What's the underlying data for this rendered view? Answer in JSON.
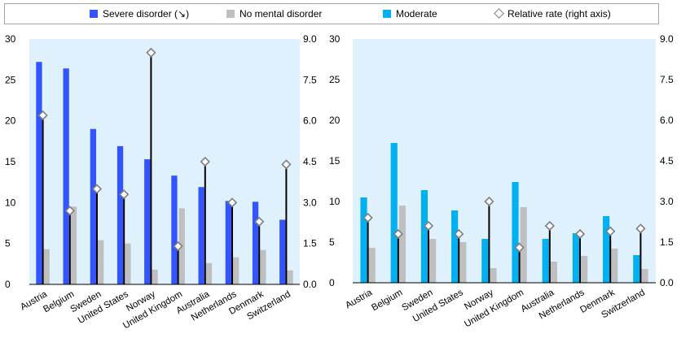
{
  "legend": {
    "severe": "Severe disorder (↘)",
    "none": "No mental disorder",
    "moderate": "Moderate",
    "relative": "Relative rate (right axis)"
  },
  "colors": {
    "severe": "#3355ff",
    "moderate": "#00b0f0",
    "none": "#bfbfbf",
    "plot_bg": "#dff1fc",
    "marker": "#7f7f7f"
  },
  "chart_data": [
    {
      "type": "bar",
      "categories": [
        "Austria",
        "Belgium",
        "Sweden",
        "United States",
        "Norway",
        "United Kingdom",
        "Australia",
        "Netherlands",
        "Denmark",
        "Switzerland"
      ],
      "series": [
        {
          "name": "Severe disorder (↘)",
          "values": [
            27.2,
            26.4,
            19.0,
            16.9,
            15.3,
            13.3,
            11.9,
            10.2,
            10.1,
            7.9
          ]
        },
        {
          "name": "No mental disorder",
          "values": [
            4.3,
            9.5,
            5.4,
            5.0,
            1.8,
            9.3,
            2.6,
            3.3,
            4.2,
            1.7
          ]
        },
        {
          "name": "Relative rate (right axis)",
          "axis": "right",
          "values": [
            6.2,
            2.7,
            3.5,
            3.3,
            8.5,
            1.4,
            4.5,
            3.0,
            2.3,
            4.4
          ]
        }
      ],
      "ylim": [
        0,
        30
      ],
      "yticks": [
        "0",
        "5",
        "10",
        "15",
        "20",
        "25",
        "30"
      ],
      "y2lim": [
        0,
        9
      ],
      "y2ticks": [
        "0.0",
        "1.5",
        "3.0",
        "4.5",
        "6.0",
        "7.5",
        "9.0"
      ]
    },
    {
      "type": "bar",
      "categories": [
        "Austria",
        "Belgium",
        "Sweden",
        "United States",
        "Norway",
        "United Kingdom",
        "Australia",
        "Netherlands",
        "Denmark",
        "Switzerland"
      ],
      "series": [
        {
          "name": "Moderate",
          "values": [
            10.5,
            17.2,
            11.4,
            8.9,
            5.4,
            12.4,
            5.4,
            6.1,
            8.2,
            3.4
          ]
        },
        {
          "name": "No mental disorder",
          "values": [
            4.3,
            9.5,
            5.4,
            5.0,
            1.8,
            9.3,
            2.6,
            3.3,
            4.2,
            1.7
          ]
        },
        {
          "name": "Relative rate (right axis)",
          "axis": "right",
          "values": [
            2.4,
            1.8,
            2.1,
            1.8,
            3.0,
            1.3,
            2.1,
            1.8,
            1.9,
            2.0
          ]
        }
      ],
      "ylim": [
        0,
        30
      ],
      "yticks": [
        "0",
        "5",
        "10",
        "15",
        "20",
        "25",
        "30"
      ],
      "y2lim": [
        0,
        9
      ],
      "y2ticks": [
        "0.0",
        "1.5",
        "3.0",
        "4.5",
        "6.0",
        "7.5",
        "9.0"
      ]
    }
  ]
}
